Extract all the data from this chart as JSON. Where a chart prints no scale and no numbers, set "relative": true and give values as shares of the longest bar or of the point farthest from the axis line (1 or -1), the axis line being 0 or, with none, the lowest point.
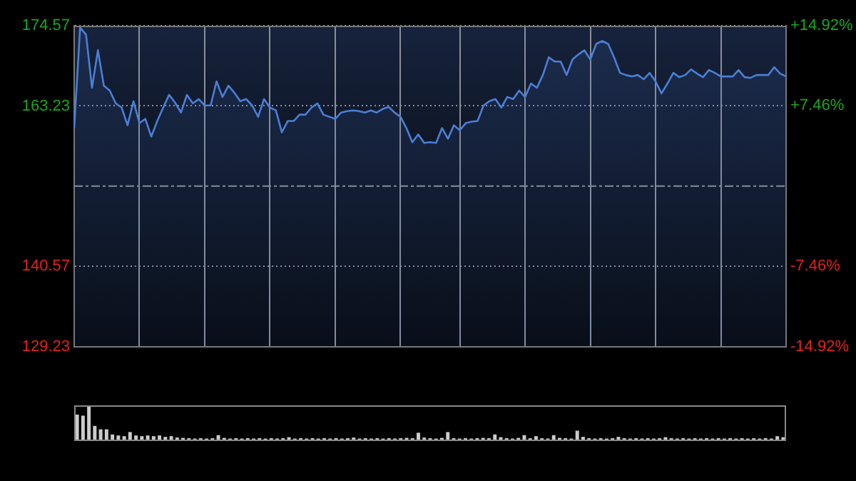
{
  "chart_data": [
    {
      "type": "area",
      "categories": [
        null,
        null,
        null,
        null,
        null,
        null,
        null,
        null,
        null,
        null,
        null,
        null,
        null,
        null,
        null,
        null,
        null,
        null,
        null,
        null,
        null,
        null,
        null,
        null,
        null,
        null,
        null,
        null,
        null,
        null,
        null,
        null,
        null,
        null,
        null,
        null,
        null,
        null,
        null,
        null,
        null,
        null,
        null,
        null,
        null,
        null,
        null,
        null,
        null,
        null,
        null,
        null,
        null,
        null,
        null,
        null,
        null,
        null,
        null,
        null,
        null,
        null,
        null,
        null,
        null,
        null,
        null,
        null,
        null,
        null,
        null,
        null,
        null,
        null,
        null,
        null,
        null,
        null,
        null,
        null,
        null,
        null,
        null,
        null,
        null,
        null,
        null,
        null,
        null,
        null,
        null,
        null,
        null,
        null,
        null,
        null,
        null,
        null,
        null,
        null,
        null,
        null,
        null,
        null,
        null,
        null,
        null,
        null,
        null,
        null,
        null,
        null,
        null,
        null,
        null,
        null,
        null,
        null,
        null,
        null,
        null
      ],
      "ylim": [
        129.23,
        174.57
      ],
      "yticks": [
        129.23,
        140.57,
        163.23,
        174.57
      ],
      "y2lim": [
        -14.92,
        14.92
      ],
      "y2ticks": [
        {
          "value": -14.92,
          "label": "-14.92%"
        },
        {
          "value": -7.46,
          "label": "-7.46%"
        },
        {
          "value": 7.46,
          "label": "+7.46%"
        },
        {
          "value": 14.92,
          "label": "+14.92%"
        }
      ],
      "grid": true,
      "legend": false,
      "ref_lines": [
        {
          "axis": "y",
          "value": 151.9,
          "line_style": "dashed"
        }
      ],
      "series": [
        {
          "color": "#4a7fd6",
          "values": [
            160.1,
            174.3,
            173.3,
            165.8,
            171.1,
            166.1,
            165.4,
            163.6,
            163,
            160.5,
            163.9,
            160.8,
            161.4,
            158.9,
            161.1,
            163,
            164.8,
            163.7,
            162.3,
            164.8,
            163.6,
            164.2,
            163.3,
            163.3,
            166.7,
            164.5,
            166.1,
            165.1,
            163.9,
            164.2,
            163.3,
            161.7,
            164.2,
            163,
            162.6,
            159.5,
            161.1,
            161.1,
            162,
            162,
            163,
            163.6,
            162,
            161.7,
            161.4,
            162.3,
            162.5,
            162.6,
            162.5,
            162.3,
            162.6,
            162.3,
            162.8,
            163.1,
            162.3,
            161.7,
            160.1,
            158.1,
            159.2,
            158,
            158.1,
            158,
            160.1,
            158.6,
            160.5,
            159.8,
            160.8,
            161,
            161.1,
            163.3,
            163.9,
            164.2,
            163,
            164.5,
            164.2,
            165.4,
            164.5,
            166.4,
            165.8,
            167.6,
            170.1,
            169.5,
            169.5,
            167.6,
            169.8,
            170.5,
            171.1,
            169.8,
            172,
            172.4,
            172,
            170.1,
            167.9,
            167.6,
            167.4,
            167.6,
            167,
            167.9,
            166.7,
            165,
            166.4,
            167.9,
            167.3,
            167.6,
            168.4,
            167.8,
            167.3,
            168.3,
            167.9,
            167.4,
            167.4,
            167.4,
            168.3,
            167.3,
            167.2,
            167.6,
            167.6,
            167.6,
            168.7,
            167.8,
            167.4
          ]
        }
      ]
    },
    {
      "type": "bar",
      "relative": true,
      "grid": false,
      "legend": false,
      "categories": [
        null,
        null,
        null,
        null,
        null,
        null,
        null,
        null,
        null,
        null,
        null,
        null,
        null,
        null,
        null,
        null,
        null,
        null,
        null,
        null,
        null,
        null,
        null,
        null,
        null,
        null,
        null,
        null,
        null,
        null,
        null,
        null,
        null,
        null,
        null,
        null,
        null,
        null,
        null,
        null,
        null,
        null,
        null,
        null,
        null,
        null,
        null,
        null,
        null,
        null,
        null,
        null,
        null,
        null,
        null,
        null,
        null,
        null,
        null,
        null,
        null,
        null,
        null,
        null,
        null,
        null,
        null,
        null,
        null,
        null,
        null,
        null,
        null,
        null,
        null,
        null,
        null,
        null,
        null,
        null,
        null,
        null,
        null,
        null,
        null,
        null,
        null,
        null,
        null,
        null,
        null,
        null,
        null,
        null,
        null,
        null,
        null,
        null,
        null,
        null,
        null,
        null,
        null,
        null,
        null,
        null,
        null,
        null,
        null,
        null,
        null,
        null,
        null,
        null,
        null,
        null,
        null,
        null,
        null,
        null,
        null
      ],
      "series": [
        {
          "color": "#cccccc",
          "values": [
            0.73,
            0.7,
            1,
            0.4,
            0.3,
            0.3,
            0.15,
            0.12,
            0.1,
            0.22,
            0.12,
            0.1,
            0.12,
            0.1,
            0.12,
            0.08,
            0.1,
            0.06,
            0.05,
            0.04,
            0.03,
            0.04,
            0.03,
            0.04,
            0.13,
            0.05,
            0.03,
            0.04,
            0.03,
            0.04,
            0.03,
            0.04,
            0.03,
            0.04,
            0.03,
            0.04,
            0.07,
            0.03,
            0.04,
            0.03,
            0.04,
            0.03,
            0.04,
            0.03,
            0.04,
            0.03,
            0.04,
            0.06,
            0.03,
            0.04,
            0.03,
            0.04,
            0.03,
            0.04,
            0.03,
            0.04,
            0.05,
            0.04,
            0.2,
            0.06,
            0.04,
            0.03,
            0.05,
            0.22,
            0.04,
            0.03,
            0.04,
            0.03,
            0.04,
            0.05,
            0.04,
            0.15,
            0.07,
            0.04,
            0.03,
            0.05,
            0.13,
            0.04,
            0.1,
            0.04,
            0.03,
            0.13,
            0.05,
            0.04,
            0.03,
            0.26,
            0.08,
            0.04,
            0.03,
            0.04,
            0.03,
            0.04,
            0.08,
            0.04,
            0.03,
            0.04,
            0.03,
            0.04,
            0.03,
            0.04,
            0.07,
            0.04,
            0.03,
            0.04,
            0.03,
            0.04,
            0.03,
            0.04,
            0.03,
            0.04,
            0.03,
            0.04,
            0.03,
            0.04,
            0.03,
            0.04,
            0.03,
            0.04,
            0.03,
            0.1,
            0.07
          ]
        }
      ]
    }
  ]
}
